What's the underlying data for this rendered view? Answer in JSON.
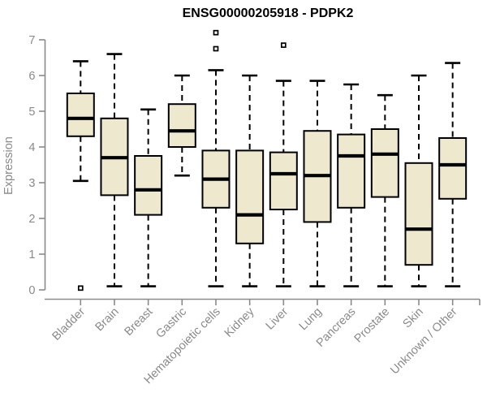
{
  "chart_data": {
    "type": "boxplot",
    "title": "ENSG00000205918 - PDPK2",
    "ylabel": "Expression",
    "xlabel": "",
    "ylim": [
      0,
      7
    ],
    "yticks": [
      "0",
      "1",
      "2",
      "3",
      "4",
      "5",
      "6",
      "7"
    ],
    "grid": false,
    "legend": "none",
    "categories": [
      "Bladder",
      "Brain",
      "Breast",
      "Gastric",
      "Hematopoietic cells",
      "Kidney",
      "Liver",
      "Lung",
      "Pancreas",
      "Prostate",
      "Skin",
      "Unknown / Other"
    ],
    "series": [
      {
        "category": "Bladder",
        "whisker_low": 3.05,
        "q1": 4.3,
        "median": 4.8,
        "q3": 5.5,
        "whisker_high": 6.4,
        "outliers": [
          0.05
        ]
      },
      {
        "category": "Brain",
        "whisker_low": 0.1,
        "q1": 2.65,
        "median": 3.7,
        "q3": 4.8,
        "whisker_high": 6.6,
        "outliers": []
      },
      {
        "category": "Breast",
        "whisker_low": 0.1,
        "q1": 2.1,
        "median": 2.8,
        "q3": 3.75,
        "whisker_high": 5.05,
        "outliers": []
      },
      {
        "category": "Gastric",
        "whisker_low": 3.2,
        "q1": 4.0,
        "median": 4.45,
        "q3": 5.2,
        "whisker_high": 6.0,
        "outliers": []
      },
      {
        "category": "Hematopoietic cells",
        "whisker_low": 0.1,
        "q1": 2.3,
        "median": 3.1,
        "q3": 3.9,
        "whisker_high": 6.15,
        "outliers": [
          7.2,
          6.75
        ]
      },
      {
        "category": "Kidney",
        "whisker_low": 0.1,
        "q1": 1.3,
        "median": 2.1,
        "q3": 3.9,
        "whisker_high": 6.0,
        "outliers": []
      },
      {
        "category": "Liver",
        "whisker_low": 0.1,
        "q1": 2.25,
        "median": 3.25,
        "q3": 3.85,
        "whisker_high": 5.85,
        "outliers": [
          6.85
        ]
      },
      {
        "category": "Lung",
        "whisker_low": 0.1,
        "q1": 1.9,
        "median": 3.2,
        "q3": 4.45,
        "whisker_high": 5.85,
        "outliers": []
      },
      {
        "category": "Pancreas",
        "whisker_low": 0.1,
        "q1": 2.3,
        "median": 3.75,
        "q3": 4.35,
        "whisker_high": 5.75,
        "outliers": []
      },
      {
        "category": "Prostate",
        "whisker_low": 0.1,
        "q1": 2.6,
        "median": 3.8,
        "q3": 4.5,
        "whisker_high": 5.45,
        "outliers": []
      },
      {
        "category": "Skin",
        "whisker_low": 0.1,
        "q1": 0.7,
        "median": 1.7,
        "q3": 3.55,
        "whisker_high": 6.0,
        "outliers": []
      },
      {
        "category": "Unknown / Other",
        "whisker_low": 0.1,
        "q1": 2.55,
        "median": 3.5,
        "q3": 4.25,
        "whisker_high": 6.35,
        "outliers": []
      }
    ],
    "colors": {
      "box_fill": "#EDE8CE",
      "box_stroke": "#000000",
      "median": "#000000",
      "whisker": "#000000",
      "outlier_stroke": "#000000",
      "outlier_fill": "#ffffff",
      "axis_line": "#8A8A8A",
      "axis_text": "#8A8A8A",
      "title_text": "#000000"
    }
  }
}
